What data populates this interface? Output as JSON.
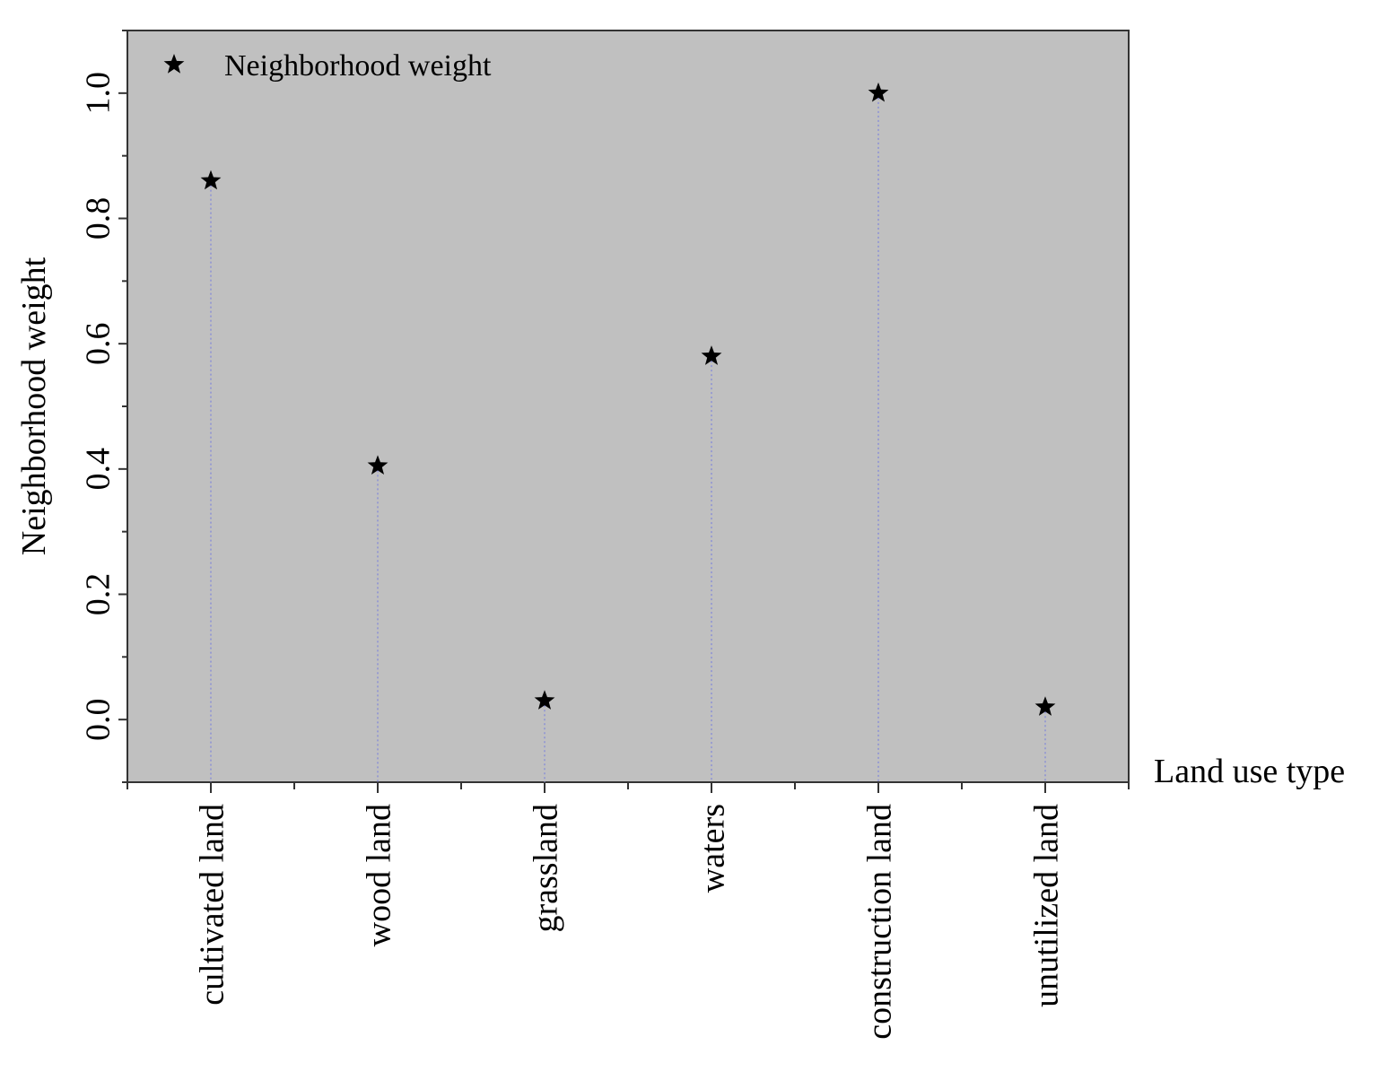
{
  "chart_data": {
    "type": "scatter",
    "marker": "star",
    "categories": [
      "cultivated land",
      "wood land",
      "grassland",
      "waters",
      "construction land",
      "unutilized land"
    ],
    "series": [
      {
        "name": "Neighborhood weight",
        "values": [
          0.86,
          0.405,
          0.03,
          0.58,
          1.0,
          0.02
        ]
      }
    ],
    "xlabel": "Land use type",
    "ylabel": "Neighborhood weight",
    "ylim": [
      -0.1,
      1.1
    ],
    "yticks": [
      "0.0",
      "0.2",
      "0.4",
      "0.6",
      "0.8",
      "1.0"
    ],
    "grid": false,
    "drop_lines": true,
    "legend_position": "top-left",
    "colors": {
      "plot_background": "#c0c0c0",
      "marker": "#000000",
      "drop_line": "#8b8fd6",
      "axis": "#333333"
    }
  }
}
